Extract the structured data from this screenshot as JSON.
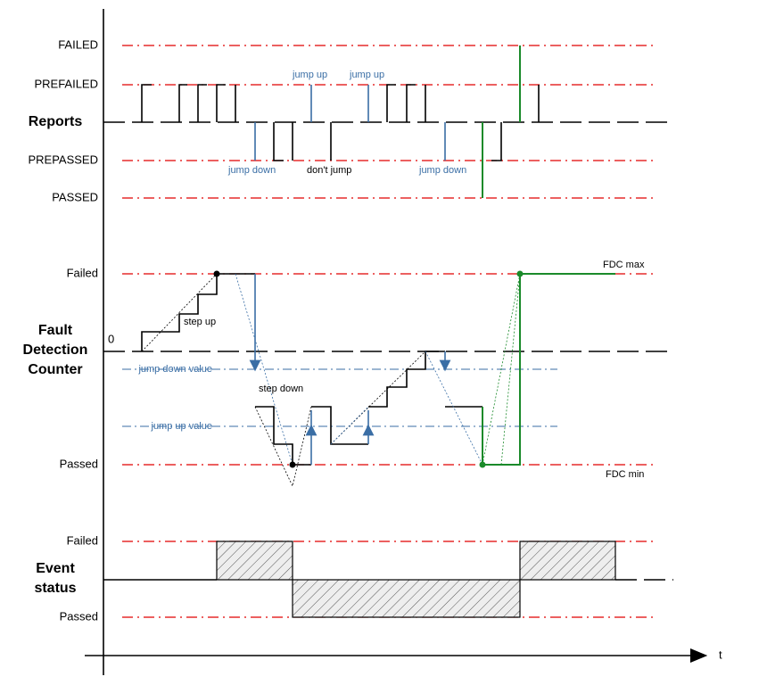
{
  "reports": {
    "levels": [
      "FAILED",
      "PREFAILED",
      "Reports",
      "PREPASSED",
      "PASSED"
    ],
    "annotations": [
      "jump up",
      "jump up",
      "jump down",
      "don't jump",
      "jump down"
    ]
  },
  "fdc": {
    "levels": [
      "Failed",
      "0",
      "Passed"
    ],
    "title": [
      "Fault",
      "Detection",
      "Counter"
    ],
    "annotations": [
      "step up",
      "step down",
      "jump down value",
      "jump up value",
      "FDC max",
      "FDC min"
    ]
  },
  "event": {
    "levels": [
      "Failed",
      "Passed"
    ],
    "title": [
      "Event",
      "status"
    ]
  },
  "time_axis": "t"
}
